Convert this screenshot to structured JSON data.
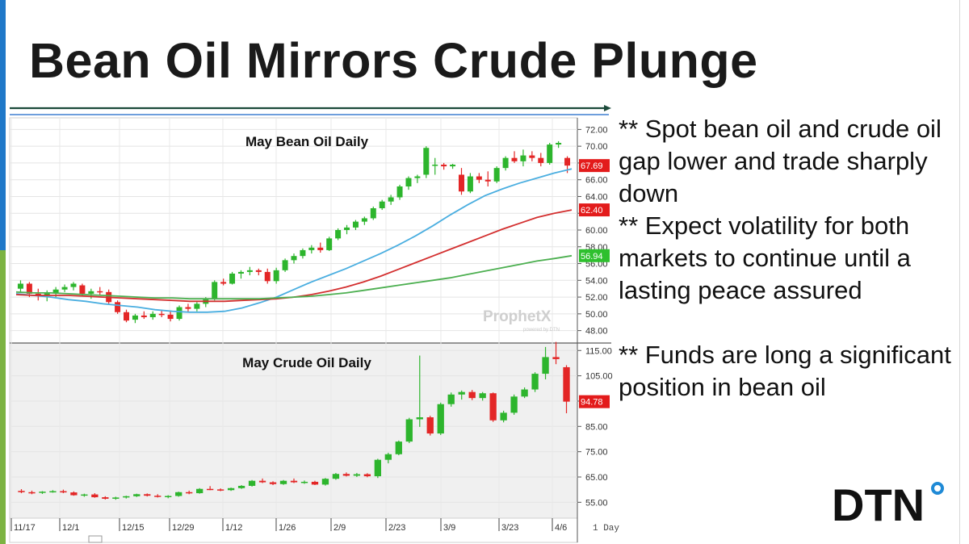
{
  "slide": {
    "title": "Bean Oil Mirrors Crude Plunge",
    "bullets": [
      "** Spot bean oil and crude oil gap lower and trade sharply down",
      "** Expect volatility for both markets to continue until a lasting peace assured",
      "",
      "** Funds are long a significant position in bean oil"
    ],
    "logo": {
      "text": "DTN",
      "dot_color": "#1f8ad6"
    },
    "accent_colors": {
      "top": "#1f78c8",
      "bottom": "#7cb342"
    }
  },
  "chart_data": [
    {
      "type": "candlestick",
      "title": "May Bean Oil Daily",
      "watermark": "ProphetX",
      "watermark_sub": "powered by DTN",
      "y_ticks": [
        "72.00",
        "70.00",
        "68.00",
        "66.00",
        "64.00",
        "62.00",
        "60.00",
        "58.00",
        "56.00",
        "54.00",
        "52.00",
        "50.00",
        "48.00"
      ],
      "ylim": [
        47,
        73
      ],
      "price_tags": [
        {
          "label": "67.69",
          "value": 67.69,
          "color": "#e31b1b"
        },
        {
          "label": "62.40",
          "value": 62.4,
          "color": "#e31b1b"
        },
        {
          "label": "56.94",
          "value": 56.94,
          "color": "#2ec02e"
        }
      ],
      "candles": [
        [
          53,
          54,
          52.5,
          53.6
        ],
        [
          53.6,
          53.8,
          52,
          52.4
        ],
        [
          52.4,
          53,
          51.6,
          52.2
        ],
        [
          52.2,
          52.8,
          51.5,
          52.5
        ],
        [
          52.5,
          53.2,
          52,
          52.9
        ],
        [
          52.9,
          53.5,
          52.6,
          53.2
        ],
        [
          53.2,
          53.8,
          52.8,
          53.6
        ],
        [
          53.4,
          53.6,
          52.2,
          52.4
        ],
        [
          52.4,
          53,
          51.8,
          52.7
        ],
        [
          52.7,
          53.2,
          52.2,
          52.6
        ],
        [
          52.6,
          52.9,
          51.2,
          51.4
        ],
        [
          51.4,
          51.6,
          50,
          50.2
        ],
        [
          50.2,
          50.5,
          49,
          49.2
        ],
        [
          49.3,
          50,
          48.9,
          49.8
        ],
        [
          49.8,
          50.3,
          49.4,
          49.6
        ],
        [
          49.6,
          50.3,
          49.3,
          50
        ],
        [
          50,
          50.5,
          49.6,
          49.9
        ],
        [
          49.9,
          50.4,
          49.1,
          49.4
        ],
        [
          49.4,
          51,
          49.2,
          50.8
        ],
        [
          50.8,
          51.2,
          50.2,
          50.6
        ],
        [
          50.6,
          51.4,
          50.3,
          51.2
        ],
        [
          51.2,
          52,
          50.8,
          51.8
        ],
        [
          51.8,
          54,
          51.6,
          53.8
        ],
        [
          53.8,
          54.2,
          53.4,
          53.6
        ],
        [
          53.6,
          55,
          53.5,
          54.8
        ],
        [
          54.8,
          55.2,
          54.2,
          55
        ],
        [
          55,
          55.6,
          54.6,
          55.2
        ],
        [
          55.2,
          55.4,
          54.6,
          55
        ],
        [
          55,
          55.4,
          53.6,
          53.9
        ],
        [
          53.9,
          55.5,
          53.6,
          55.2
        ],
        [
          55.2,
          56.6,
          55,
          56.4
        ],
        [
          56.4,
          57.2,
          56,
          56.9
        ],
        [
          56.9,
          57.8,
          56.6,
          57.6
        ],
        [
          57.6,
          58.2,
          57.2,
          57.9
        ],
        [
          57.9,
          58.5,
          57.3,
          57.6
        ],
        [
          57.6,
          59.2,
          57.5,
          59
        ],
        [
          59,
          60.2,
          58.8,
          60
        ],
        [
          60,
          60.6,
          59.5,
          60.3
        ],
        [
          60.3,
          61.2,
          60,
          61
        ],
        [
          61,
          61.6,
          60.6,
          61.4
        ],
        [
          61.4,
          62.8,
          61.2,
          62.6
        ],
        [
          62.6,
          63.6,
          62.4,
          63.4
        ],
        [
          63.4,
          64.2,
          63,
          63.9
        ],
        [
          63.9,
          65.4,
          63.6,
          65.2
        ],
        [
          65.2,
          66.4,
          64.8,
          66.2
        ],
        [
          66.2,
          66.6,
          65.6,
          66.4
        ],
        [
          66.6,
          70,
          66.2,
          69.8
        ],
        [
          67.8,
          68.6,
          66.6,
          67.8
        ],
        [
          67.8,
          68,
          67.2,
          67.6
        ],
        [
          67.6,
          67.9,
          67.3,
          67.8
        ],
        [
          66.6,
          67.4,
          64.2,
          64.6
        ],
        [
          64.6,
          66.8,
          64.4,
          66.4
        ],
        [
          66.4,
          66.8,
          65.6,
          66
        ],
        [
          66,
          67,
          65.2,
          65.8
        ],
        [
          65.8,
          67.6,
          65.6,
          67.4
        ],
        [
          67.4,
          68.8,
          67.1,
          68.6
        ],
        [
          68.6,
          69.4,
          68,
          68.2
        ],
        [
          68.2,
          69.6,
          67.6,
          68.9
        ],
        [
          68.9,
          69.4,
          68.2,
          68.6
        ],
        [
          68.6,
          69.2,
          67.6,
          68
        ],
        [
          68,
          70.4,
          67.8,
          70.2
        ],
        [
          70.2,
          70.6,
          69.8,
          70.4
        ],
        [
          68.6,
          68.8,
          66.8,
          67.69
        ]
      ],
      "moving_averages": [
        {
          "name": "blue",
          "color": "#4aaee0",
          "values": [
            52.4,
            52.2,
            52,
            51.7,
            51.5,
            51.2,
            51,
            50.8,
            50.5,
            50.3,
            50.2,
            50.2,
            50.3,
            50.7,
            51.3,
            52,
            52.9,
            53.8,
            54.6,
            55.4,
            56.3,
            57.2,
            58.2,
            59.3,
            60.5,
            61.8,
            63,
            64.1,
            64.9,
            65.6,
            66.2,
            66.8,
            67.3
          ]
        },
        {
          "name": "red",
          "color": "#d32f2f",
          "values": [
            52.3,
            52.2,
            52.2,
            52.2,
            52.1,
            52,
            51.9,
            51.8,
            51.7,
            51.6,
            51.5,
            51.5,
            51.5,
            51.6,
            51.7,
            51.8,
            52,
            52.3,
            52.7,
            53.2,
            53.8,
            54.5,
            55.3,
            56.1,
            56.9,
            57.7,
            58.5,
            59.3,
            60.1,
            60.8,
            61.5,
            62,
            62.4
          ]
        },
        {
          "name": "green",
          "color": "#4caf50",
          "values": [
            52.6,
            52.5,
            52.5,
            52.4,
            52.3,
            52.2,
            52.1,
            52,
            51.9,
            51.9,
            51.8,
            51.8,
            51.8,
            51.8,
            51.8,
            51.9,
            52,
            52.1,
            52.3,
            52.5,
            52.8,
            53.1,
            53.4,
            53.7,
            54,
            54.3,
            54.7,
            55.1,
            55.5,
            55.9,
            56.3,
            56.6,
            56.94
          ]
        }
      ]
    },
    {
      "type": "candlestick",
      "title": "May Crude Oil Daily",
      "y_ticks": [
        "115.00",
        "105.00",
        "95.00",
        "85.00",
        "75.00",
        "65.00",
        "55.00"
      ],
      "ylim": [
        50,
        117
      ],
      "price_tags": [
        {
          "label": "94.78",
          "value": 94.78,
          "color": "#e31b1b"
        }
      ],
      "x_ticks": [
        "11/17",
        "12/1",
        "12/15",
        "12/29",
        "1/12",
        "1/26",
        "2/9",
        "2/23",
        "3/9",
        "3/23",
        "4/6"
      ],
      "period_label": "1 Day",
      "candles": [
        [
          59.5,
          60.2,
          58.6,
          59
        ],
        [
          59,
          59.6,
          58.2,
          58.8
        ],
        [
          58.8,
          59.4,
          58.3,
          59.2
        ],
        [
          59.2,
          59.8,
          58.8,
          59.4
        ],
        [
          59.4,
          60,
          58.6,
          58.9
        ],
        [
          58.9,
          59.3,
          57.6,
          57.8
        ],
        [
          57.8,
          58.4,
          57.2,
          58.1
        ],
        [
          58.1,
          58.6,
          56.8,
          57
        ],
        [
          57,
          57.4,
          56.1,
          56.4
        ],
        [
          56.4,
          57.2,
          56,
          56.9
        ],
        [
          56.9,
          57.6,
          56.5,
          57.4
        ],
        [
          57.4,
          58.4,
          57.1,
          58.2
        ],
        [
          58.2,
          58.5,
          57.3,
          57.6
        ],
        [
          57.6,
          58.2,
          56.9,
          57.2
        ],
        [
          57.2,
          57.8,
          56.6,
          57.5
        ],
        [
          57.5,
          59.2,
          57.2,
          59
        ],
        [
          59,
          59.6,
          58.2,
          58.6
        ],
        [
          58.6,
          60.6,
          58.4,
          60.3
        ],
        [
          60.3,
          61.4,
          59.8,
          60.1
        ],
        [
          60.1,
          60.5,
          59.4,
          59.8
        ],
        [
          59.8,
          60.8,
          59.5,
          60.6
        ],
        [
          60.6,
          61.8,
          60.3,
          61.5
        ],
        [
          61.5,
          63.8,
          61.2,
          63.5
        ],
        [
          63.5,
          64.4,
          62.6,
          62.9
        ],
        [
          62.9,
          63.3,
          61.8,
          62.2
        ],
        [
          62.2,
          63.8,
          61.9,
          63.5
        ],
        [
          63.5,
          64.4,
          62.6,
          62.9
        ],
        [
          62.9,
          63.6,
          62.3,
          63.1
        ],
        [
          63.1,
          63.5,
          61.8,
          62
        ],
        [
          62,
          64.6,
          61.6,
          64.3
        ],
        [
          64.3,
          66.6,
          63.9,
          66.2
        ],
        [
          66.2,
          66.8,
          65.2,
          65.5
        ],
        [
          65.5,
          66.6,
          65,
          66.1
        ],
        [
          66.1,
          66.5,
          64.9,
          65.3
        ],
        [
          65.3,
          72.2,
          64.6,
          71.8
        ],
        [
          71.8,
          74.6,
          70.4,
          74
        ],
        [
          74,
          79.4,
          73.6,
          79
        ],
        [
          79,
          88.4,
          78.4,
          87.8
        ],
        [
          87.8,
          113,
          84.8,
          88.6
        ],
        [
          88.6,
          89.2,
          81.4,
          82.2
        ],
        [
          82.2,
          94.4,
          81.6,
          93.8
        ],
        [
          93.8,
          98.4,
          92.8,
          97.6
        ],
        [
          97.6,
          99.2,
          95.6,
          98.6
        ],
        [
          98.6,
          99.4,
          95.4,
          96.2
        ],
        [
          96.2,
          98.6,
          95.2,
          98.1
        ],
        [
          98.1,
          98.4,
          86.8,
          87.4
        ],
        [
          87.4,
          91.2,
          86.6,
          90.4
        ],
        [
          90.4,
          97.6,
          89.6,
          96.8
        ],
        [
          96.8,
          100.4,
          96.2,
          99.6
        ],
        [
          99.6,
          106.4,
          98.6,
          105.8
        ],
        [
          105.8,
          116.4,
          103.6,
          112.4
        ],
        [
          112.4,
          118.4,
          109.6,
          111.6
        ],
        [
          108.4,
          109.2,
          90.2,
          94.78
        ]
      ]
    }
  ]
}
